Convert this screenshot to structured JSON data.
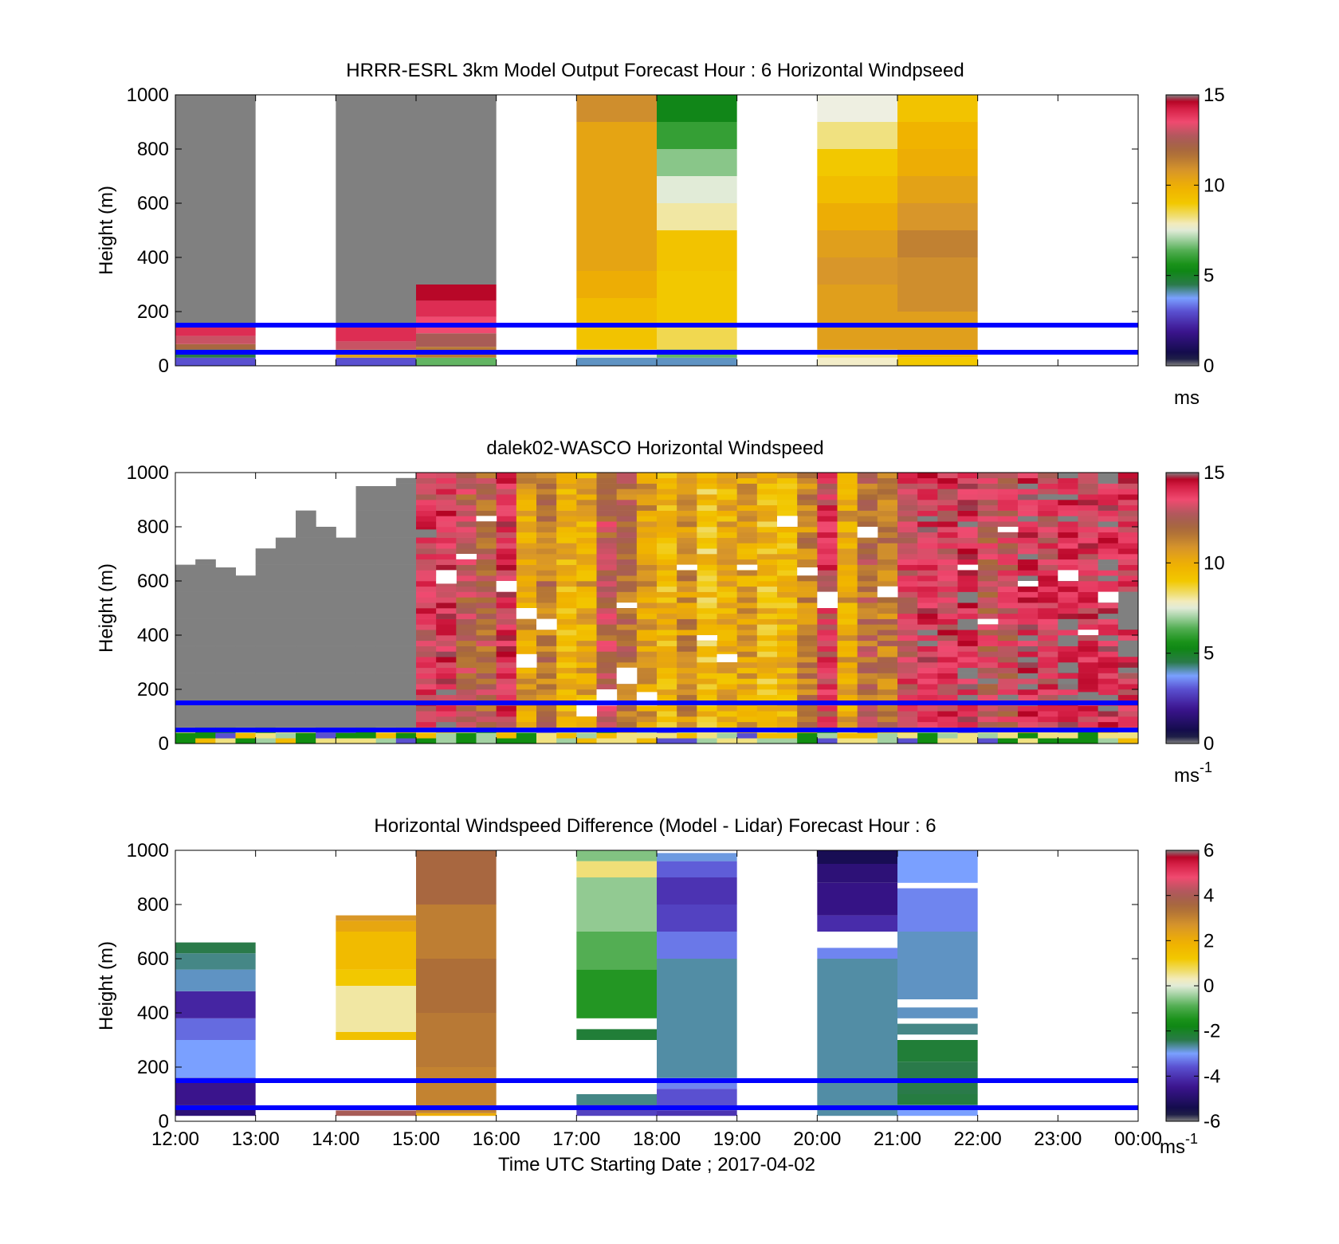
{
  "figure": {
    "xlabel": "Time UTC  Starting Date ; 2017-04-02"
  },
  "chart_data": [
    {
      "type": "heatmap",
      "title": "HRRR-ESRL 3km Model Output   Forecast Hour : 6 Horizontal Windpseed",
      "ylabel": "Height (m)",
      "x_ticks": [
        "12:00",
        "13:00",
        "14:00",
        "15:00",
        "16:00",
        "17:00",
        "18:00",
        "19:00",
        "20:00",
        "21:00",
        "22:00",
        "23:00",
        "00:00"
      ],
      "y_ticks": [
        "0",
        "200",
        "400",
        "600",
        "800",
        "1000"
      ],
      "ylim": [
        0,
        1000
      ],
      "colorbar": {
        "ticks": [
          "0",
          "5",
          "10",
          "15"
        ],
        "min": 0,
        "max": 15,
        "unit": "ms",
        "unit_sup": ""
      },
      "reference_lines_m": [
        50,
        150
      ],
      "reference_line_color": "#0000ff",
      "missing_color": "#808080",
      "columns": [
        {
          "hour": 0,
          "cells": [
            [
              0,
              30,
              3
            ],
            [
              30,
              60,
              4.5
            ],
            [
              60,
              80,
              12
            ],
            [
              80,
              110,
              13
            ],
            [
              110,
              150,
              14
            ],
            [
              150,
              1000,
              "nan"
            ]
          ]
        },
        {
          "hour": 2,
          "cells": [
            [
              0,
              30,
              3
            ],
            [
              30,
              60,
              10.5
            ],
            [
              60,
              90,
              13
            ],
            [
              90,
              150,
              14
            ],
            [
              150,
              1000,
              "nan"
            ]
          ]
        },
        {
          "hour": 3,
          "cells": [
            [
              0,
              30,
              6.5
            ],
            [
              30,
              70,
              11.5
            ],
            [
              70,
              120,
              12.5
            ],
            [
              120,
              180,
              13.5
            ],
            [
              180,
              240,
              14
            ],
            [
              240,
              300,
              14.6
            ],
            [
              300,
              1000,
              "nan"
            ]
          ]
        },
        {
          "hour": 5,
          "cells": [
            [
              0,
              30,
              4
            ],
            [
              30,
              60,
              7.5
            ],
            [
              60,
              150,
              9.2
            ],
            [
              150,
              250,
              9.5
            ],
            [
              250,
              350,
              10
            ],
            [
              350,
              900,
              10.3
            ],
            [
              900,
              1000,
              11
            ]
          ]
        },
        {
          "hour": 6,
          "cells": [
            [
              0,
              30,
              4
            ],
            [
              30,
              60,
              6.5
            ],
            [
              60,
              150,
              8.5
            ],
            [
              150,
              350,
              9
            ],
            [
              350,
              500,
              9.2
            ],
            [
              500,
              600,
              8
            ],
            [
              600,
              700,
              7.5
            ],
            [
              700,
              800,
              6.8
            ],
            [
              800,
              900,
              6
            ],
            [
              900,
              1000,
              5.2
            ]
          ]
        },
        {
          "hour": 8,
          "cells": [
            [
              0,
              30,
              7.8
            ],
            [
              30,
              60,
              8.2
            ],
            [
              60,
              300,
              10.5
            ],
            [
              300,
              400,
              10.8
            ],
            [
              400,
              500,
              10.5
            ],
            [
              500,
              600,
              10
            ],
            [
              600,
              700,
              9.4
            ],
            [
              700,
              800,
              9
            ],
            [
              800,
              900,
              8.2
            ],
            [
              900,
              1000,
              7.6
            ]
          ]
        },
        {
          "hour": 9,
          "cells": [
            [
              0,
              30,
              9
            ],
            [
              30,
              60,
              9.6
            ],
            [
              60,
              200,
              10.5
            ],
            [
              200,
              400,
              11
            ],
            [
              400,
              500,
              11.3
            ],
            [
              500,
              600,
              10.8
            ],
            [
              600,
              700,
              10.4
            ],
            [
              700,
              800,
              10
            ],
            [
              800,
              900,
              9.8
            ],
            [
              900,
              1000,
              9.2
            ]
          ]
        }
      ]
    },
    {
      "type": "heatmap",
      "title": "dalek02-WASCO  Horizontal Windspeed",
      "ylabel": "Height (m)",
      "x_ticks": [
        "12:00",
        "13:00",
        "14:00",
        "15:00",
        "16:00",
        "17:00",
        "18:00",
        "19:00",
        "20:00",
        "21:00",
        "22:00",
        "23:00",
        "00:00"
      ],
      "y_ticks": [
        "0",
        "200",
        "400",
        "600",
        "800",
        "1000"
      ],
      "ylim": [
        0,
        1000
      ],
      "colorbar": {
        "ticks": [
          "0",
          "5",
          "10",
          "15"
        ],
        "min": 0,
        "max": 15,
        "unit": "ms",
        "unit_sup": "-1"
      },
      "reference_lines_m": [
        50,
        150
      ],
      "reference_line_color": "#0000ff",
      "missing_color": "#808080",
      "time_step_hours": 0.25,
      "column_top_m": [
        660,
        680,
        650,
        620,
        720,
        760,
        860,
        800,
        760,
        950,
        950,
        980,
        1000,
        1000,
        1000,
        1000,
        1000,
        1000,
        1000,
        1000,
        1000,
        1000,
        1000,
        1000,
        1000,
        1000,
        1000,
        1000,
        1000,
        1000,
        1000,
        1000,
        1000,
        1000,
        1000,
        1000,
        1000,
        1000,
        1000,
        1000,
        1000,
        1000,
        1000,
        1000,
        1000,
        1000,
        1000,
        1000
      ],
      "column_mean_speed": [
        "nan",
        "nan",
        "nan",
        "nan",
        "nan",
        "nan",
        "nan",
        "nan",
        "nan",
        "nan",
        "nan",
        "nan",
        13.5,
        14,
        12.5,
        12.2,
        13.8,
        10.5,
        11.5,
        9.8,
        10.2,
        12.5,
        11.8,
        10.6,
        9.6,
        11,
        9.2,
        10,
        10.4,
        9.5,
        9.8,
        11.2,
        13.4,
        10.3,
        12,
        11.5,
        13.2,
        14,
        13.6,
        14.2,
        12.8,
        13,
        14.3,
        13.5,
        14.6,
        13.8,
        14.4,
        13.7
      ],
      "blank_bands": [
        [
          13,
          590,
          640
        ],
        [
          14,
          680,
          700
        ],
        [
          15,
          820,
          840
        ],
        [
          16,
          560,
          600
        ],
        [
          17,
          460,
          500
        ],
        [
          17,
          280,
          330
        ],
        [
          18,
          420,
          460
        ],
        [
          20,
          100,
          160
        ],
        [
          21,
          140,
          200
        ],
        [
          22,
          220,
          280
        ],
        [
          22,
          500,
          520
        ],
        [
          23,
          140,
          190
        ],
        [
          25,
          640,
          660
        ],
        [
          26,
          380,
          400
        ],
        [
          27,
          300,
          330
        ],
        [
          28,
          640,
          660
        ],
        [
          30,
          800,
          840
        ],
        [
          31,
          620,
          650
        ],
        [
          32,
          500,
          560
        ],
        [
          34,
          760,
          800
        ],
        [
          35,
          540,
          580
        ],
        [
          39,
          640,
          660
        ],
        [
          40,
          440,
          460
        ],
        [
          41,
          780,
          800
        ],
        [
          42,
          580,
          600
        ],
        [
          44,
          600,
          640
        ],
        [
          45,
          400,
          420
        ],
        [
          46,
          520,
          560
        ]
      ],
      "missing_bands": [
        [
          12,
          760,
          790
        ],
        [
          13,
          600,
          610
        ],
        [
          40,
          220,
          240
        ],
        [
          41,
          160,
          180
        ],
        [
          43,
          900,
          920
        ],
        [
          44,
          260,
          280
        ],
        [
          45,
          160,
          190
        ],
        [
          47,
          260,
          280
        ],
        [
          47,
          320,
          380
        ],
        [
          47,
          420,
          560
        ]
      ],
      "low_level_color_speeds": [
        8.2,
        9.5,
        5.5,
        7,
        3
      ]
    },
    {
      "type": "heatmap",
      "title": "Horizontal Windspeed Difference (Model - Lidar) Forecast Hour : 6",
      "ylabel": "Height (m)",
      "x_ticks": [
        "12:00",
        "13:00",
        "14:00",
        "15:00",
        "16:00",
        "17:00",
        "18:00",
        "19:00",
        "20:00",
        "21:00",
        "22:00",
        "23:00",
        "00:00"
      ],
      "y_ticks": [
        "0",
        "200",
        "400",
        "600",
        "800",
        "1000"
      ],
      "ylim": [
        0,
        1000
      ],
      "colorbar": {
        "ticks": [
          "-6",
          "-4",
          "-2",
          "0",
          "2",
          "4",
          "6"
        ],
        "min": -6,
        "max": 6,
        "unit": "ms",
        "unit_sup": "-1"
      },
      "reference_lines_m": [
        50,
        150
      ],
      "reference_line_color": "#0000ff",
      "missing_color": "#808080",
      "columns": [
        {
          "hour": 0,
          "cells": [
            [
              20,
              60,
              -4.8
            ],
            [
              60,
              160,
              -4.5
            ],
            [
              160,
              300,
              -3
            ],
            [
              300,
              380,
              -3.4
            ],
            [
              380,
              480,
              -4.2
            ],
            [
              480,
              560,
              -2.8
            ],
            [
              560,
              620,
              -2.6
            ],
            [
              620,
              660,
              -2.4
            ]
          ]
        },
        {
          "hour": 2,
          "cells": [
            [
              20,
              40,
              4
            ],
            [
              300,
              330,
              1.4
            ],
            [
              330,
              500,
              0.4
            ],
            [
              500,
              560,
              1.2
            ],
            [
              560,
              700,
              1.6
            ],
            [
              700,
              740,
              2.2
            ],
            [
              740,
              760,
              2.6
            ]
          ]
        },
        {
          "hour": 3,
          "cells": [
            [
              20,
              30,
              2
            ],
            [
              30,
              200,
              3
            ],
            [
              200,
              400,
              3.2
            ],
            [
              400,
              600,
              3.4
            ],
            [
              600,
              800,
              3.1
            ],
            [
              800,
              1000,
              3.6
            ]
          ]
        },
        {
          "hour": 5,
          "cells": [
            [
              20,
              40,
              -3.8
            ],
            [
              40,
              60,
              -4.2
            ],
            [
              60,
              100,
              -2.6
            ],
            [
              300,
              340,
              -2.2
            ],
            [
              380,
              560,
              -1.4
            ],
            [
              560,
              700,
              -0.9
            ],
            [
              700,
              900,
              -0.5
            ],
            [
              900,
              960,
              0.6
            ],
            [
              960,
              1000,
              -0.6
            ]
          ]
        },
        {
          "hour": 6,
          "cells": [
            [
              20,
              40,
              -4
            ],
            [
              40,
              120,
              -3.6
            ],
            [
              120,
              160,
              -3.2
            ],
            [
              160,
              600,
              -2.7
            ],
            [
              600,
              700,
              -3.3
            ],
            [
              700,
              800,
              -3.8
            ],
            [
              800,
              900,
              -4
            ],
            [
              900,
              960,
              -3.5
            ],
            [
              960,
              990,
              -2.9
            ]
          ]
        },
        {
          "hour": 8,
          "cells": [
            [
              20,
              600,
              -2.7
            ],
            [
              600,
              640,
              -3.2
            ],
            [
              700,
              760,
              -4.1
            ],
            [
              760,
              880,
              -4.6
            ],
            [
              880,
              950,
              -4.8
            ],
            [
              950,
              1000,
              -5.3
            ]
          ]
        },
        {
          "hour": 9,
          "cells": [
            [
              20,
              60,
              -3
            ],
            [
              60,
              100,
              -2.3
            ],
            [
              100,
              220,
              -2.4
            ],
            [
              220,
              300,
              -2.2
            ],
            [
              320,
              360,
              -2.6
            ],
            [
              380,
              420,
              -2.8
            ],
            [
              450,
              700,
              -2.8
            ],
            [
              700,
              860,
              -3.2
            ],
            [
              880,
              1000,
              -3
            ]
          ]
        }
      ]
    }
  ]
}
